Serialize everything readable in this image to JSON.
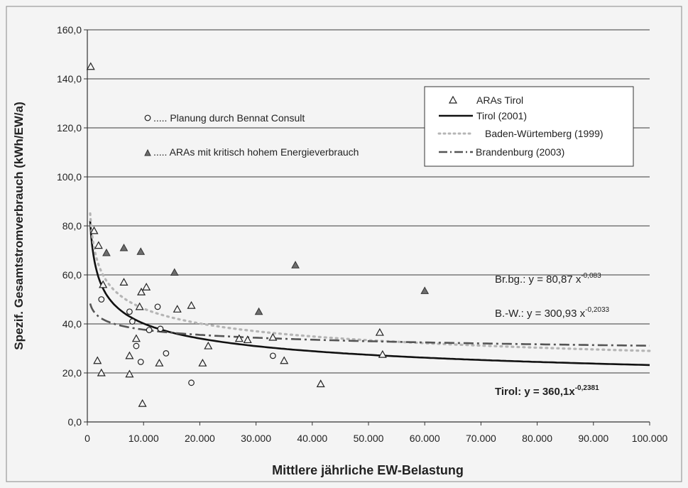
{
  "chart_data": {
    "type": "scatter",
    "xlabel": "Mittlere jährliche EW-Belastung",
    "ylabel": "Spezif. Gesamtstromverbrauch (kWh/EW/a)",
    "xlim": [
      0,
      100000
    ],
    "ylim": [
      0,
      160
    ],
    "x_ticks": [
      0,
      10000,
      20000,
      30000,
      40000,
      50000,
      60000,
      70000,
      80000,
      90000,
      100000
    ],
    "x_tick_labels": [
      "0",
      "10.000",
      "20.000",
      "30.000",
      "40.000",
      "50.000",
      "60.000",
      "70.000",
      "80.000",
      "90.000",
      "100.000"
    ],
    "y_ticks": [
      0,
      20,
      40,
      60,
      80,
      100,
      120,
      140,
      160
    ],
    "y_tick_labels": [
      "0,0",
      "20,0",
      "40,0",
      "60,0",
      "80,0",
      "100,0",
      "120,0",
      "140,0",
      "160,0"
    ],
    "grid": "horizontal",
    "legend_position": "top-right",
    "legend": [
      {
        "label": "ARAs Tirol",
        "marker": "open-triangle"
      },
      {
        "label": "Tirol (2001)",
        "line": "solid",
        "color": "#111111"
      },
      {
        "label": "Baden-Würtemberg (1999)",
        "line": "dotted",
        "color": "#b0b0b0"
      },
      {
        "label": "Brandenburg (2003)",
        "line": "dash-dot",
        "color": "#555555"
      }
    ],
    "annotations": {
      "planung": "..... Planung durch Bennat Consult",
      "kritisch": "..... ARAs mit kritisch hohem Energieverbrauch",
      "eq_brbg_main": "Br.bg.: y = 80,87 x",
      "eq_brbg_exp": "-0,083",
      "eq_bw_main": "B.-W.: y = 300,93 x",
      "eq_bw_exp": "-0,2033",
      "eq_tirol_main": "Tirol: y = 360,1x",
      "eq_tirol_exp": "-0,2381"
    },
    "fits": [
      {
        "name": "Tirol (2001)",
        "a": 360.1,
        "b": -0.2381,
        "style": "solid",
        "color": "#111111"
      },
      {
        "name": "Baden-Würtemberg (1999)",
        "a": 300.93,
        "b": -0.2033,
        "style": "dotted",
        "color": "#b5b5b5"
      },
      {
        "name": "Brandenburg (2003)",
        "a": 80.87,
        "b": -0.083,
        "style": "dashdot",
        "color": "#555555"
      }
    ],
    "series": [
      {
        "name": "ARAs Tirol",
        "marker": "open-triangle",
        "points": [
          [
            600,
            145
          ],
          [
            1200,
            78
          ],
          [
            2000,
            72
          ],
          [
            1800,
            25
          ],
          [
            2500,
            20
          ],
          [
            2800,
            56
          ],
          [
            6500,
            57
          ],
          [
            7500,
            27
          ],
          [
            7500,
            19.5
          ],
          [
            8700,
            34
          ],
          [
            9300,
            47
          ],
          [
            9600,
            53
          ],
          [
            10500,
            55
          ],
          [
            9800,
            7.5
          ],
          [
            12800,
            24
          ],
          [
            16000,
            46
          ],
          [
            18500,
            47.5
          ],
          [
            20500,
            24
          ],
          [
            21500,
            31
          ],
          [
            27000,
            34
          ],
          [
            28500,
            33.5
          ],
          [
            33000,
            34.5
          ],
          [
            35000,
            25
          ],
          [
            41500,
            15.5
          ],
          [
            52000,
            36.5
          ],
          [
            52500,
            27.5
          ]
        ]
      },
      {
        "name": "ARAs mit kritisch hohem Energieverbrauch",
        "marker": "filled-triangle",
        "points": [
          [
            3400,
            69
          ],
          [
            6500,
            71
          ],
          [
            9500,
            69.5
          ],
          [
            15500,
            61
          ],
          [
            30500,
            45
          ],
          [
            37000,
            64
          ],
          [
            60000,
            53.5
          ]
        ]
      },
      {
        "name": "Planung durch Bennat Consult",
        "marker": "open-circle",
        "points": [
          [
            2500,
            50
          ],
          [
            7500,
            45
          ],
          [
            8000,
            41
          ],
          [
            8700,
            31
          ],
          [
            9500,
            24.5
          ],
          [
            11000,
            37.5
          ],
          [
            12500,
            47
          ],
          [
            13000,
            38
          ],
          [
            14000,
            28
          ],
          [
            18500,
            16
          ],
          [
            33000,
            27
          ]
        ]
      }
    ]
  }
}
